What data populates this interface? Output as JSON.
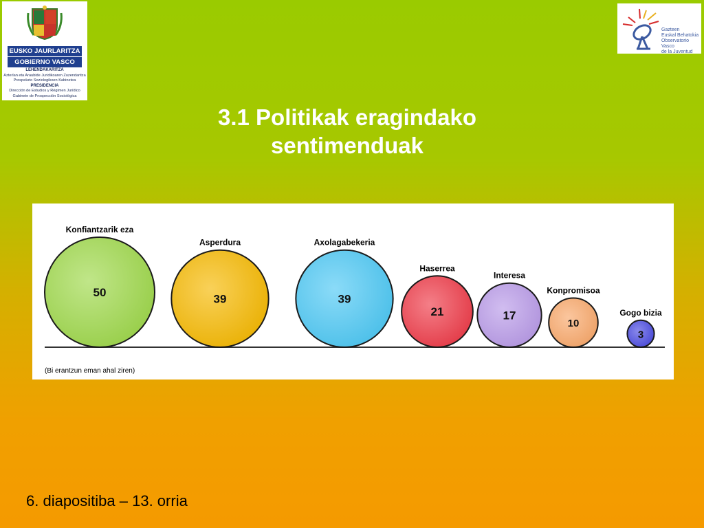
{
  "logos": {
    "left": {
      "line1": "EUSKO JAURLARITZA",
      "line2": "GOBIERNO VASCO",
      "dept1": "LEHENDAKARITZA",
      "dept1_sub1": "Azterlan eta Araubide Juridikoaren Zuzendaritza",
      "dept1_sub2": "Prospekzio Soziologikoen Kabinetea",
      "dept2": "PRESIDENCIA",
      "dept2_sub1": "Dirección de Estudios y Régimen Jurídico",
      "dept2_sub2": "Gabinete de Prospección Sociológica"
    },
    "right": {
      "line1": "Gazteen",
      "line2": "Euskal Behatokia",
      "line3": "Observatorio Vasco",
      "line4": "de la Juventud"
    }
  },
  "slide": {
    "title_line1": "3.1 Politikak eragindako",
    "title_line2": "sentimenduak",
    "footer": "6. diapositiba – 13. orria"
  },
  "chart_data": {
    "type": "bubble",
    "note": "(Bi erantzun eman ahal ziren)",
    "categories": [
      "Konfiantzarik eza",
      "Asperdura",
      "Axolagabekeria",
      "Haserrea",
      "Interesa",
      "Konpromisoa",
      "Gogo bizia"
    ],
    "values": [
      50,
      39,
      39,
      21,
      17,
      10,
      3
    ],
    "colors": [
      "#9ed84a",
      "#f5b800",
      "#4cc8f4",
      "#ee3a48",
      "#b89ae8",
      "#f9a86a",
      "#4a4ae0"
    ]
  }
}
